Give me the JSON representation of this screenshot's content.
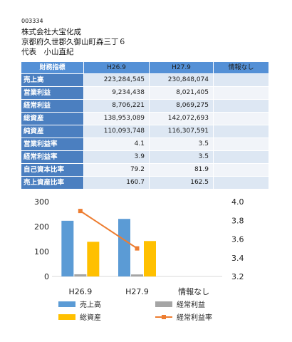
{
  "company_info": {
    "code": "003334",
    "name": "株式会社大宝化成",
    "address": "京都府久世郡久御山町森三丁６",
    "representative": "代表　小山直紀"
  },
  "colors": {
    "header_bg": "#5490d6",
    "label_bg": "#4b7fc0",
    "row_odd_bg": "#dde7f3",
    "row_even_bg": "#f1f4f9",
    "label_text": "#ffffff"
  },
  "chart_data": [
    {
      "type": "table",
      "columns": [
        "財務指標",
        "H26.9",
        "H27.9",
        "情報なし"
      ],
      "rows": [
        {
          "label": "売上高",
          "values": [
            "223,284,545",
            "230,848,074",
            ""
          ]
        },
        {
          "label": "営業利益",
          "values": [
            "9,234,438",
            "8,021,405",
            ""
          ]
        },
        {
          "label": "経常利益",
          "values": [
            "8,706,221",
            "8,069,275",
            ""
          ]
        },
        {
          "label": "総資産",
          "values": [
            "138,953,089",
            "142,072,693",
            ""
          ]
        },
        {
          "label": "純資産",
          "values": [
            "110,093,748",
            "116,307,591",
            ""
          ]
        },
        {
          "label": "営業利益率",
          "values": [
            "4.1",
            "3.5",
            ""
          ]
        },
        {
          "label": "経常利益率",
          "values": [
            "3.9",
            "3.5",
            ""
          ]
        },
        {
          "label": "自己資本比率",
          "values": [
            "79.2",
            "81.9",
            ""
          ]
        },
        {
          "label": "売上資産比率",
          "values": [
            "160.7",
            "162.5",
            ""
          ]
        }
      ]
    },
    {
      "type": "bar",
      "categories": [
        "H26.9",
        "H27.9",
        "情報なし"
      ],
      "series": [
        {
          "name": "売上高",
          "type": "bar",
          "axis": "left",
          "color": "#5b9bd5",
          "values": [
            223.3,
            230.8,
            null
          ]
        },
        {
          "name": "経常利益",
          "type": "bar",
          "axis": "left",
          "color": "#a5a5a5",
          "values": [
            8.7,
            8.1,
            null
          ]
        },
        {
          "name": "総資産",
          "type": "bar",
          "axis": "left",
          "color": "#ffc000",
          "values": [
            139.0,
            142.1,
            null
          ]
        },
        {
          "name": "経常利益率",
          "type": "line",
          "axis": "right",
          "color": "#ed7d31",
          "values": [
            3.9,
            3.5,
            null
          ]
        }
      ],
      "y_left": {
        "min": 0,
        "max": 300,
        "ticks": [
          "0",
          "100",
          "200",
          "300"
        ]
      },
      "y_right": {
        "min": 3.2,
        "max": 4.0,
        "ticks": [
          "3.2",
          "3.4",
          "3.6",
          "3.8",
          "4.0"
        ]
      },
      "grid": false,
      "legend": "bottom"
    }
  ]
}
